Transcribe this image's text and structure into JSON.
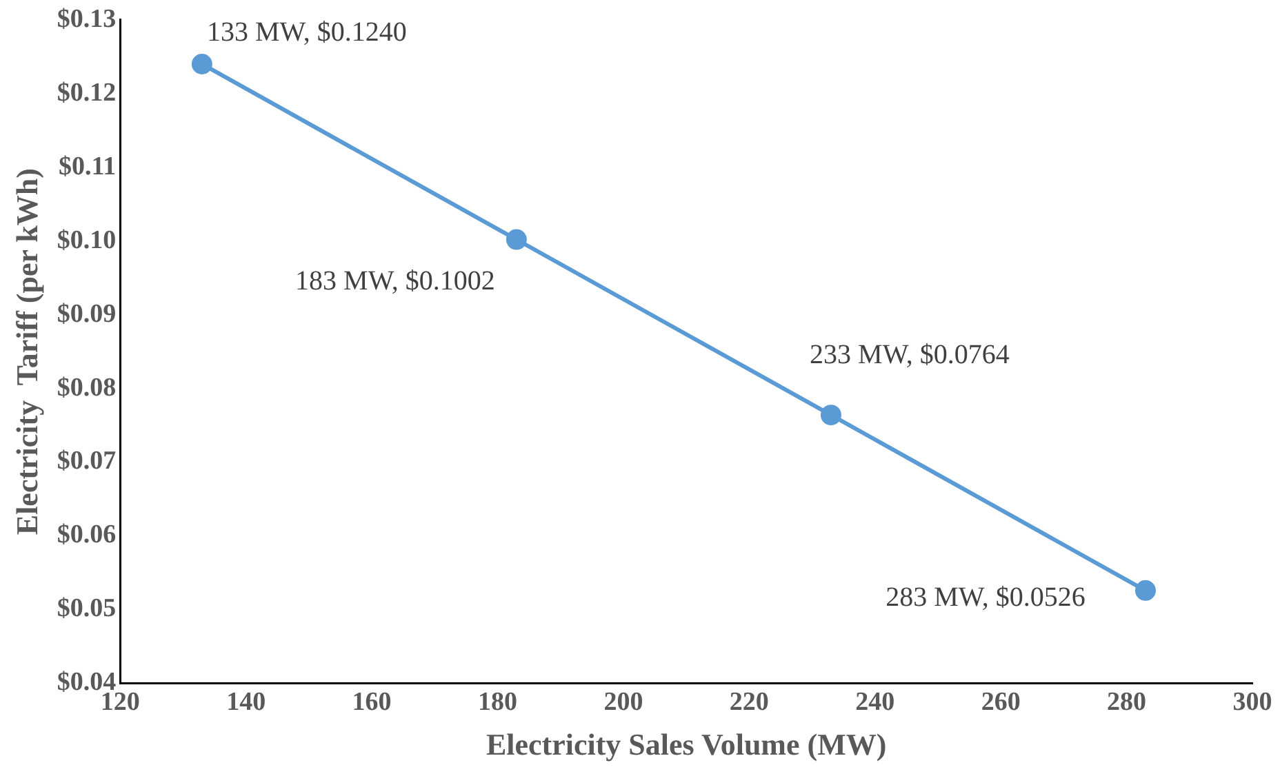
{
  "chart_data": {
    "type": "line",
    "xlabel": "Electricity Sales Volume (MW)",
    "ylabel": "Electricity  Tariff (per kWh)",
    "x": [
      133,
      183,
      233,
      283
    ],
    "series": [
      {
        "color": "#5b9bd5",
        "values": [
          0.124,
          0.1002,
          0.0764,
          0.0526
        ],
        "value_labels": [
          "133 MW, $0.1240",
          "183 MW, $0.1002",
          "233 MW, $0.0764",
          "283 MW, $0.0526"
        ]
      }
    ],
    "xlim": [
      120,
      300
    ],
    "xticks": [
      120,
      140,
      160,
      180,
      200,
      220,
      240,
      260,
      280,
      300
    ],
    "ylim": [
      0.04,
      0.13
    ],
    "yticks": [
      {
        "value": 0.04,
        "label": "$0.04"
      },
      {
        "value": 0.05,
        "label": "$0.05"
      },
      {
        "value": 0.06,
        "label": "$0.06"
      },
      {
        "value": 0.07,
        "label": "$0.07"
      },
      {
        "value": 0.08,
        "label": "$0.08"
      },
      {
        "value": 0.09,
        "label": "$0.09"
      },
      {
        "value": 0.1,
        "label": "$0.10"
      },
      {
        "value": 0.11,
        "label": "$0.11"
      },
      {
        "value": 0.12,
        "label": "$0.12"
      },
      {
        "value": 0.13,
        "label": "$0.13"
      }
    ],
    "grid": false,
    "legend": false,
    "marker": "circle",
    "line_style": "solid"
  }
}
